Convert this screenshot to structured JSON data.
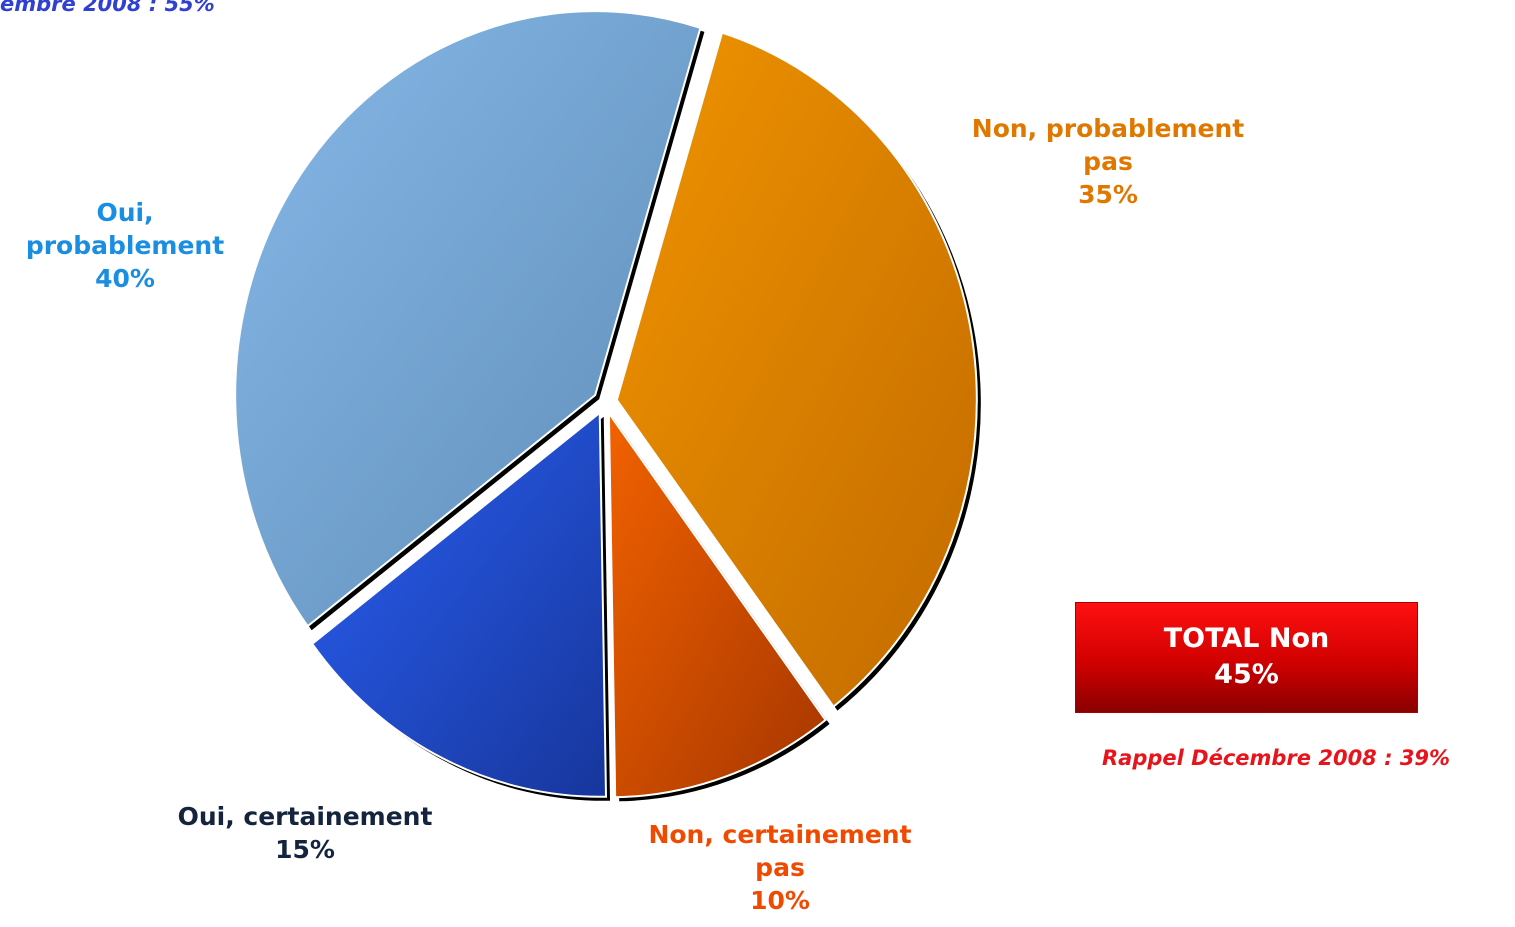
{
  "chart_data": {
    "type": "pie",
    "categories": [
      "Non, probablement pas",
      "Non, certainement pas",
      "Oui, certainement",
      "Oui, probablement"
    ],
    "values": [
      35,
      10,
      15,
      40
    ],
    "value_labels": [
      "35%",
      "10%",
      "15%",
      "40%"
    ],
    "colors": [
      [
        "#f09400",
        "#c26a00"
      ],
      [
        "#f26200",
        "#a63600"
      ],
      [
        "#2a60f4",
        "#17369c"
      ],
      [
        "#86b8e8",
        "#5f8cb6"
      ]
    ],
    "label_colors": [
      "#e07800",
      "#f04a00",
      "#14243e",
      "#1a8ee0"
    ],
    "annotations": {
      "total_title": "TOTAL Non",
      "total_value": "45%",
      "reminder": "Rappel Décembre 2008 : 39%",
      "reminder_top": "embre 2008 : 55%"
    }
  }
}
